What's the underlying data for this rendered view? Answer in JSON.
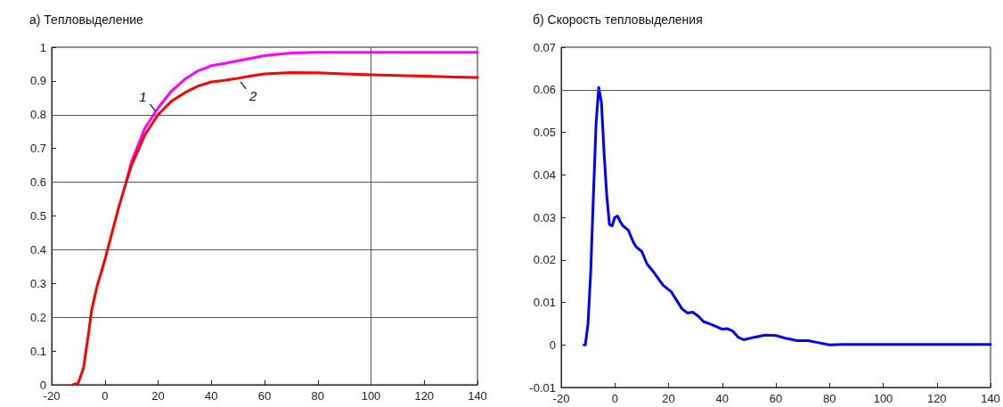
{
  "chart_data": [
    {
      "type": "line",
      "title": "a) Тепловыделение",
      "xlim": [
        -20,
        140
      ],
      "xticks": [
        -20,
        0,
        20,
        40,
        60,
        80,
        100,
        120,
        140
      ],
      "ylim": [
        0,
        1
      ],
      "yticks": [
        0,
        0.1,
        0.2,
        0.3,
        0.4,
        0.5,
        0.6,
        0.7,
        0.8,
        0.9,
        1
      ],
      "grid": false,
      "marker": "none",
      "line_style": "solid",
      "ref_lines": [
        {
          "axis": "y",
          "value": 0.2
        },
        {
          "axis": "y",
          "value": 0.4
        },
        {
          "axis": "y",
          "value": 0.6
        },
        {
          "axis": "y",
          "value": 0.8
        },
        {
          "axis": "x",
          "value": 100
        }
      ],
      "annotations": [
        {
          "text": "1",
          "x": 20,
          "y": 0.8
        },
        {
          "text": "2",
          "x": 50,
          "y": 0.908
        }
      ],
      "series": [
        {
          "color": "#ff00ff",
          "x": [
            8,
            10,
            15,
            20,
            25,
            30,
            35,
            40,
            45,
            50,
            60,
            70,
            80,
            100,
            120,
            140
          ],
          "values": [
            0.6,
            0.66,
            0.76,
            0.82,
            0.87,
            0.905,
            0.93,
            0.945,
            0.952,
            0.96,
            0.975,
            0.983,
            0.985,
            0.985,
            0.985,
            0.985
          ]
        },
        {
          "color": "#ff0000",
          "x": [
            -12,
            -10,
            -8,
            -6,
            -5,
            -3,
            0,
            2,
            5,
            8,
            10,
            15,
            20,
            25,
            30,
            35,
            40,
            45,
            50,
            55,
            60,
            70,
            80,
            90,
            100,
            120,
            140
          ],
          "values": [
            0,
            0.005,
            0.05,
            0.16,
            0.22,
            0.29,
            0.37,
            0.43,
            0.52,
            0.6,
            0.65,
            0.74,
            0.8,
            0.84,
            0.865,
            0.885,
            0.897,
            0.902,
            0.908,
            0.915,
            0.921,
            0.925,
            0.924,
            0.921,
            0.918,
            0.914,
            0.91
          ]
        }
      ]
    },
    {
      "type": "line",
      "title": "б) Скорость тепловыделения",
      "xlim": [
        -20,
        140
      ],
      "xticks": [
        -20,
        0,
        20,
        40,
        60,
        80,
        100,
        120,
        140
      ],
      "ylim": [
        -0.01,
        0.07
      ],
      "yticks": [
        -0.01,
        0,
        0.01,
        0.02,
        0.03,
        0.04,
        0.05,
        0.06,
        0.07
      ],
      "grid": false,
      "marker": "none",
      "line_style": "solid",
      "ref_lines": [
        {
          "axis": "y",
          "value": 0.06
        }
      ],
      "series": [
        {
          "color": "#0000ff",
          "x": [
            -11.5,
            -11,
            -10,
            -9,
            -8,
            -7,
            -6,
            -5,
            -4,
            -3,
            -2,
            -1,
            0,
            1,
            2,
            3,
            5,
            7,
            8,
            10,
            12,
            14,
            18,
            21,
            23,
            25,
            27,
            29,
            31,
            33,
            36,
            40,
            42,
            44,
            46,
            48,
            52,
            56,
            60,
            64,
            68,
            72,
            76,
            80,
            85,
            140
          ],
          "values": [
            0,
            0,
            0.005,
            0.017,
            0.035,
            0.052,
            0.0605,
            0.057,
            0.045,
            0.035,
            0.0283,
            0.028,
            0.03,
            0.0303,
            0.029,
            0.028,
            0.027,
            0.024,
            0.023,
            0.022,
            0.019,
            0.0175,
            0.014,
            0.0125,
            0.0105,
            0.0085,
            0.0075,
            0.0077,
            0.0068,
            0.0055,
            0.0048,
            0.0037,
            0.0038,
            0.0032,
            0.0018,
            0.0012,
            0.0018,
            0.0023,
            0.0022,
            0.0015,
            0.001,
            0.001,
            0.0005,
            0,
            0.0001,
            0.0001
          ]
        }
      ]
    }
  ]
}
